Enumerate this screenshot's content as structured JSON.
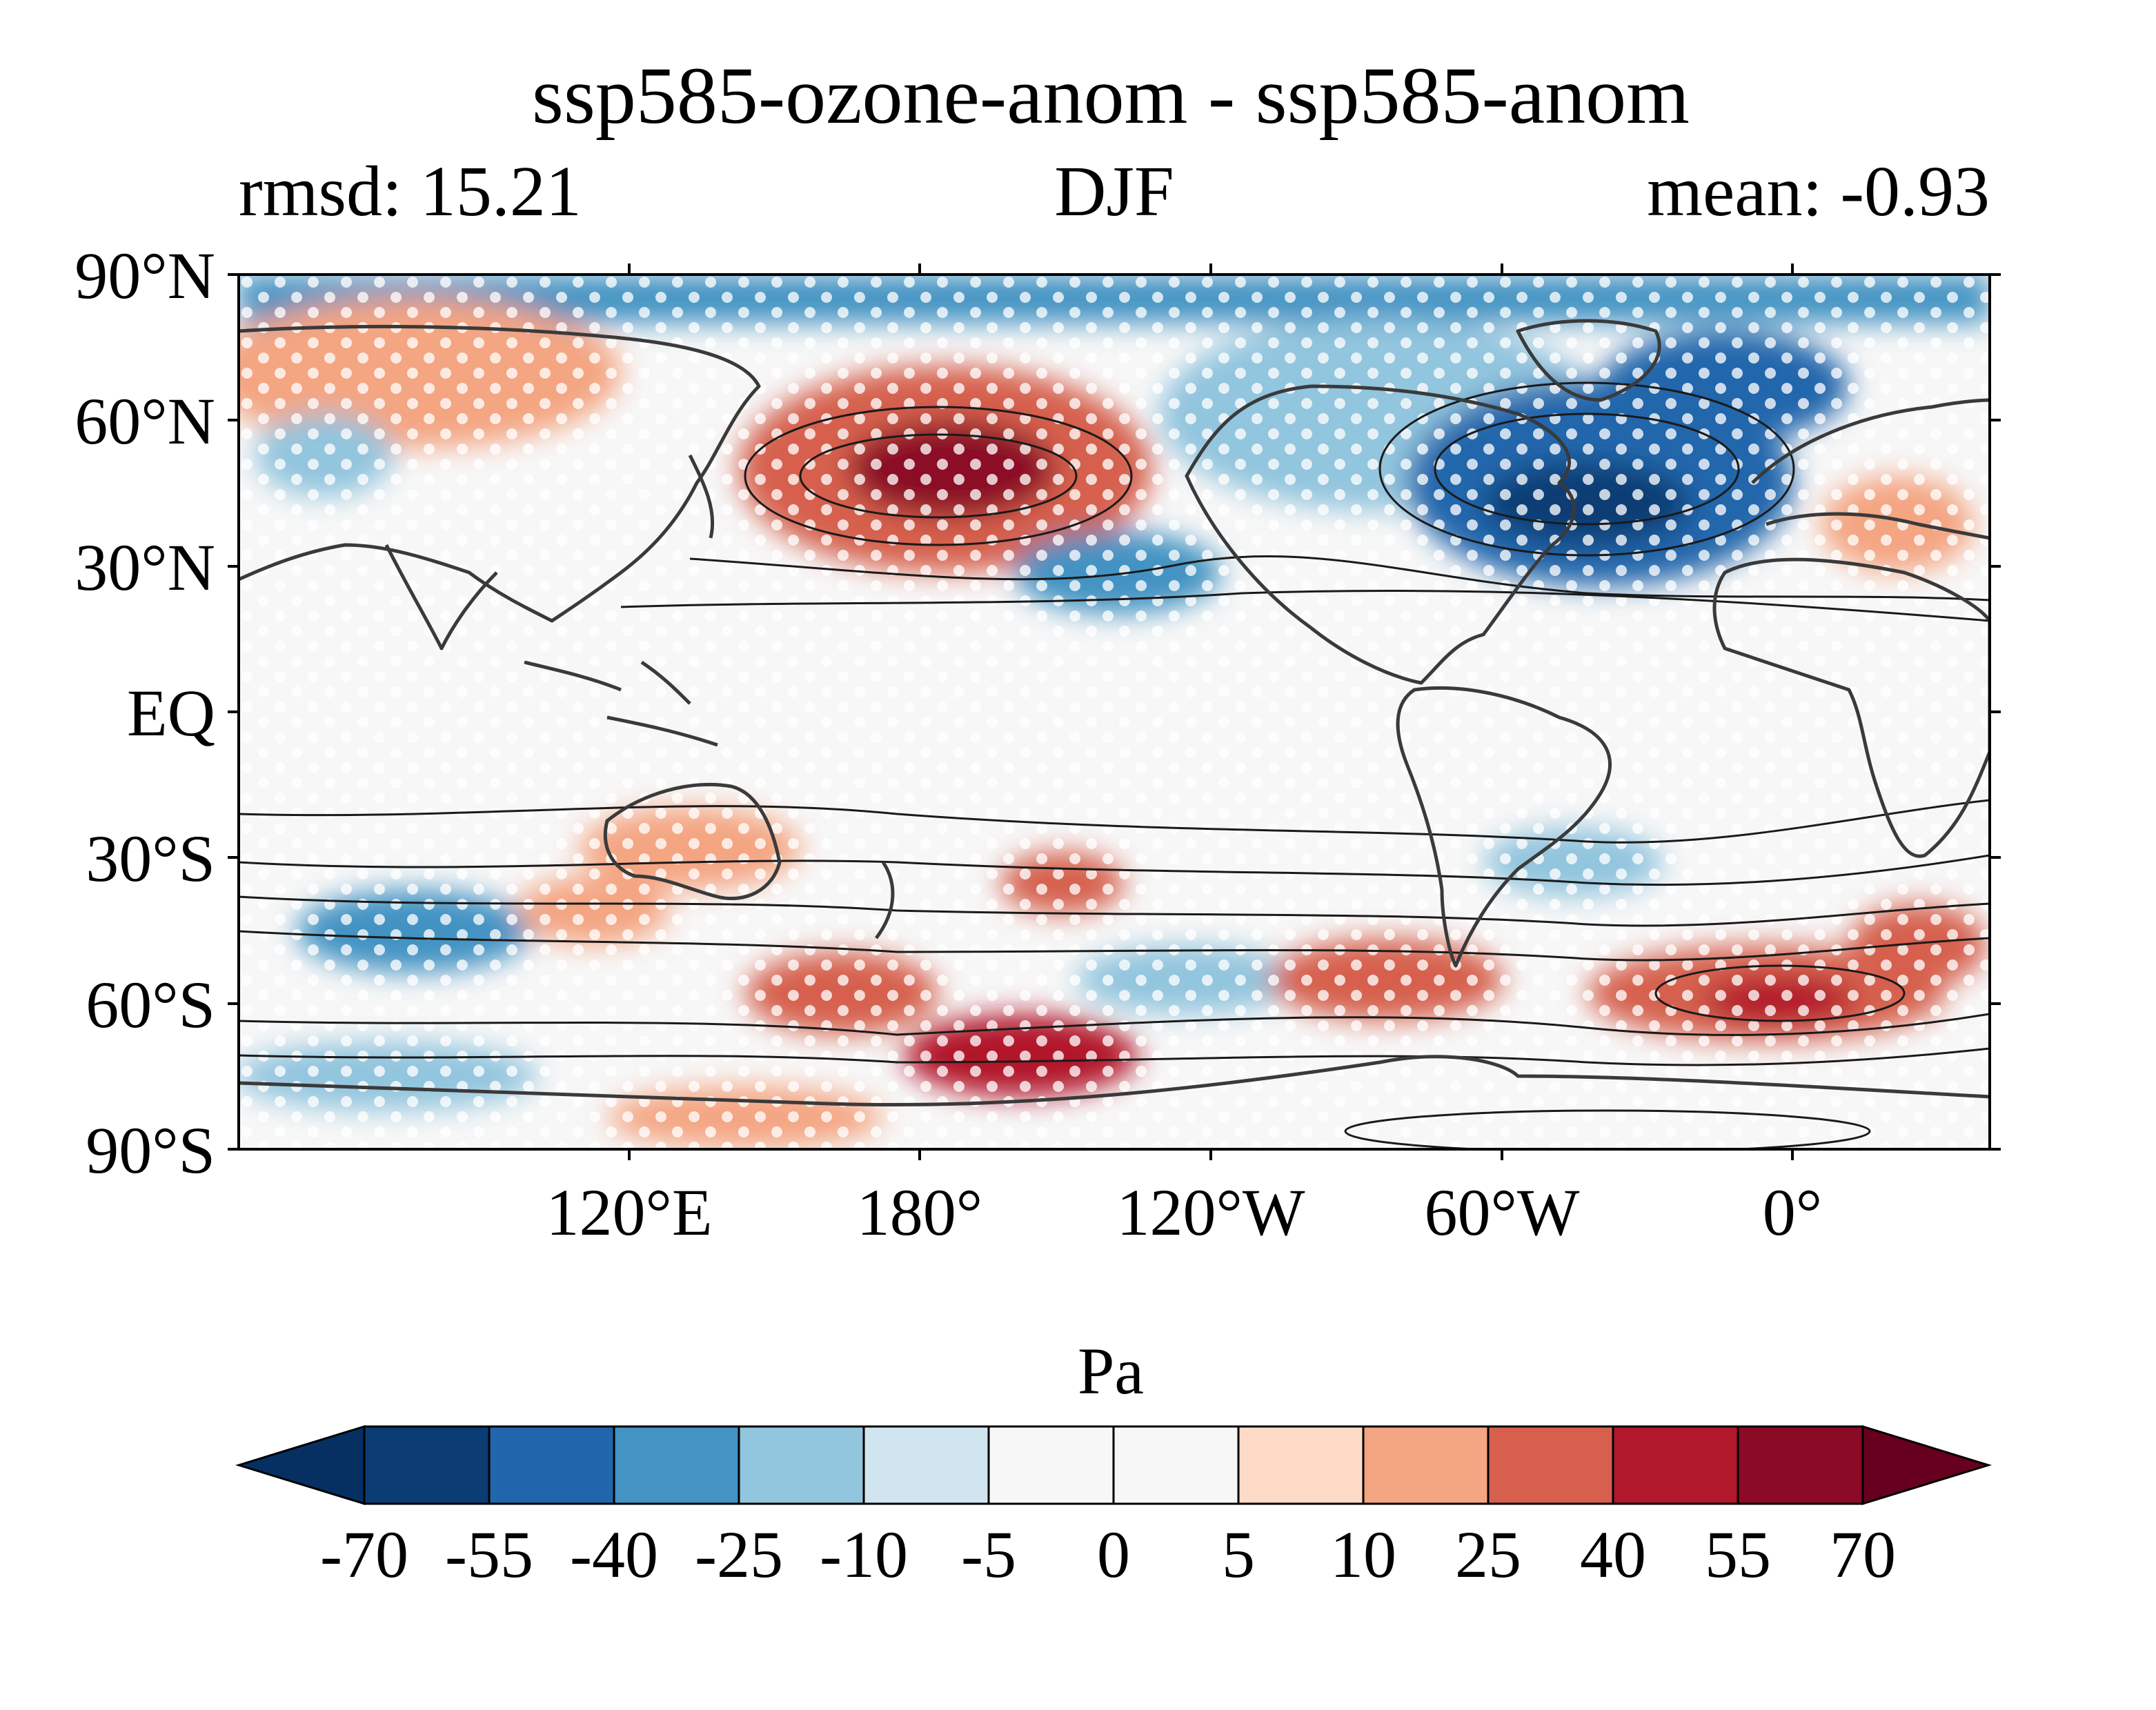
{
  "figure": {
    "title": "ssp585-ozone-anom - ssp585-anom",
    "left_label": "rmsd: 15.21",
    "center_label": "DJF",
    "right_label": "mean: -0.93"
  },
  "map": {
    "projection": "PlateCarree, centred near 107°W",
    "lat_ticks": [
      "90°N",
      "60°N",
      "30°N",
      "EQ",
      "30°S",
      "60°S",
      "90°S"
    ],
    "lon_ticks": [
      "120°E",
      "180°",
      "120°W",
      "60°W",
      "0°"
    ],
    "coastlines": true,
    "stippling": "white dots mark significant regions",
    "features": {
      "positive": [
        {
          "name": "North Pacific high anomaly",
          "lon": 180,
          "lat": 50,
          "value": 70
        },
        {
          "name": "Southern Ocean anomaly (south of NZ)",
          "lon": -170,
          "lat": -68,
          "value": 55
        },
        {
          "name": "Southern Ocean anomaly (south of Africa)",
          "lon": -10,
          "lat": -60,
          "value": 55
        },
        {
          "name": "Southern Ocean anomaly (south of Australia)",
          "lon": 160,
          "lat": -58,
          "value": 40
        }
      ],
      "negative": [
        {
          "name": "North Atlantic low anomaly",
          "lon": -45,
          "lat": 45,
          "value": -70
        },
        {
          "name": "Subtropical North Pacific low",
          "lon": -150,
          "lat": 30,
          "value": -40
        },
        {
          "name": "Southern Indian Ocean low",
          "lon": 60,
          "lat": -45,
          "value": -40
        }
      ]
    }
  },
  "colorbar": {
    "label": "Pa",
    "levels": [
      "-70",
      "-55",
      "-40",
      "-25",
      "-10",
      "-5",
      "0",
      "5",
      "10",
      "25",
      "40",
      "55",
      "70"
    ],
    "colors": [
      "#053061",
      "#0b3c73",
      "#2166ac",
      "#4393c3",
      "#92c5de",
      "#d1e5f0",
      "#f7f7f7",
      "#f7f7f7",
      "#fddbc7",
      "#f4a582",
      "#d6604d",
      "#b2182b",
      "#8b0a26",
      "#67001f"
    ],
    "extend": "both"
  }
}
